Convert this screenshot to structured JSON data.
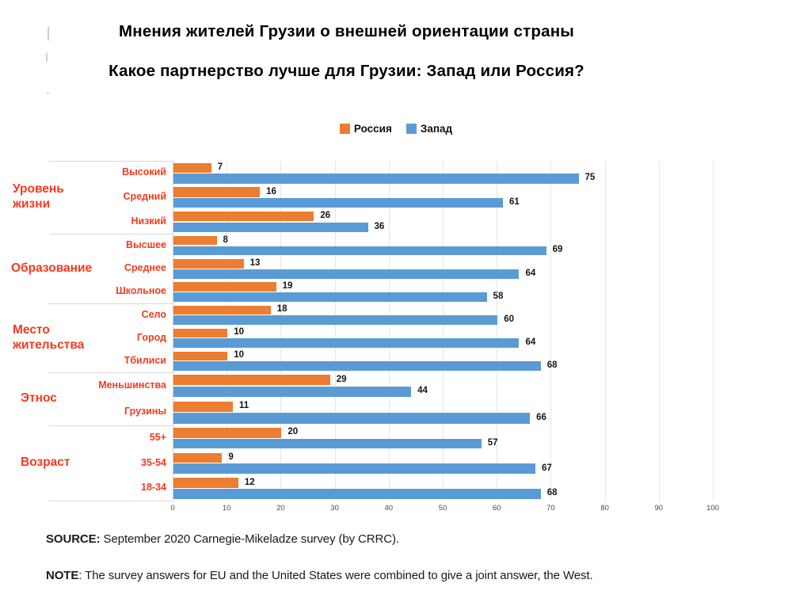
{
  "title": {
    "line1": "Мнения жителей Грузии о внешней ориентации страны",
    "line2": "Какое партнерство лучше для Грузии: Запад или Россия?"
  },
  "legend": {
    "items": [
      {
        "name": "russia",
        "label": "Россия",
        "color": "#ED7D31"
      },
      {
        "name": "west",
        "label": "Запад",
        "color": "#5B9BD5"
      }
    ]
  },
  "chart_data": {
    "type": "bar",
    "orientation": "horizontal",
    "series_meta": [
      {
        "name": "Россия",
        "color": "#ED7D31"
      },
      {
        "name": "Запад",
        "color": "#5B9BD5"
      }
    ],
    "groups": [
      {
        "label": "Уровень жизни",
        "label_lines": [
          "Уровень",
          "жизни"
        ],
        "categories": [
          "Высокий",
          "Средний",
          "Низкий"
        ],
        "russia": [
          7,
          16,
          26
        ],
        "west": [
          75,
          61,
          36
        ]
      },
      {
        "label": "Образование",
        "label_lines": [
          "Образование"
        ],
        "categories": [
          "Высшее",
          "Среднее",
          "Школьное"
        ],
        "russia": [
          8,
          13,
          19
        ],
        "west": [
          69,
          64,
          58
        ]
      },
      {
        "label": "Место жительства",
        "label_lines": [
          "Место",
          "жительства"
        ],
        "categories": [
          "Село",
          "Город",
          "Тбилиси"
        ],
        "russia": [
          18,
          10,
          10
        ],
        "west": [
          60,
          64,
          68
        ]
      },
      {
        "label": "Этнос",
        "label_lines": [
          "Этнос"
        ],
        "categories": [
          "Меньшинства",
          "Грузины"
        ],
        "russia": [
          29,
          11
        ],
        "west": [
          44,
          66
        ]
      },
      {
        "label": "Возраст",
        "label_lines": [
          "Возраст"
        ],
        "categories": [
          "55+",
          "35-54",
          "18-34"
        ],
        "russia": [
          20,
          9,
          12
        ],
        "west": [
          57,
          67,
          68
        ]
      }
    ],
    "x_ticks": [
      0,
      10,
      20,
      30,
      40,
      50,
      60,
      70,
      80,
      90,
      100
    ],
    "xlim": [
      0,
      100
    ],
    "grid": "vertical",
    "legend_position": "top-center",
    "category_label_color": "#F23B1E",
    "value_labels": true
  },
  "footer": {
    "source_label": "SOURCE:",
    "source_text": " September 2020 Carnegie-Mikeladze survey (by CRRC).",
    "note_label": "NOTE",
    "note_text": ": The survey answers for EU and the United States were combined to give a joint answer, the West."
  }
}
